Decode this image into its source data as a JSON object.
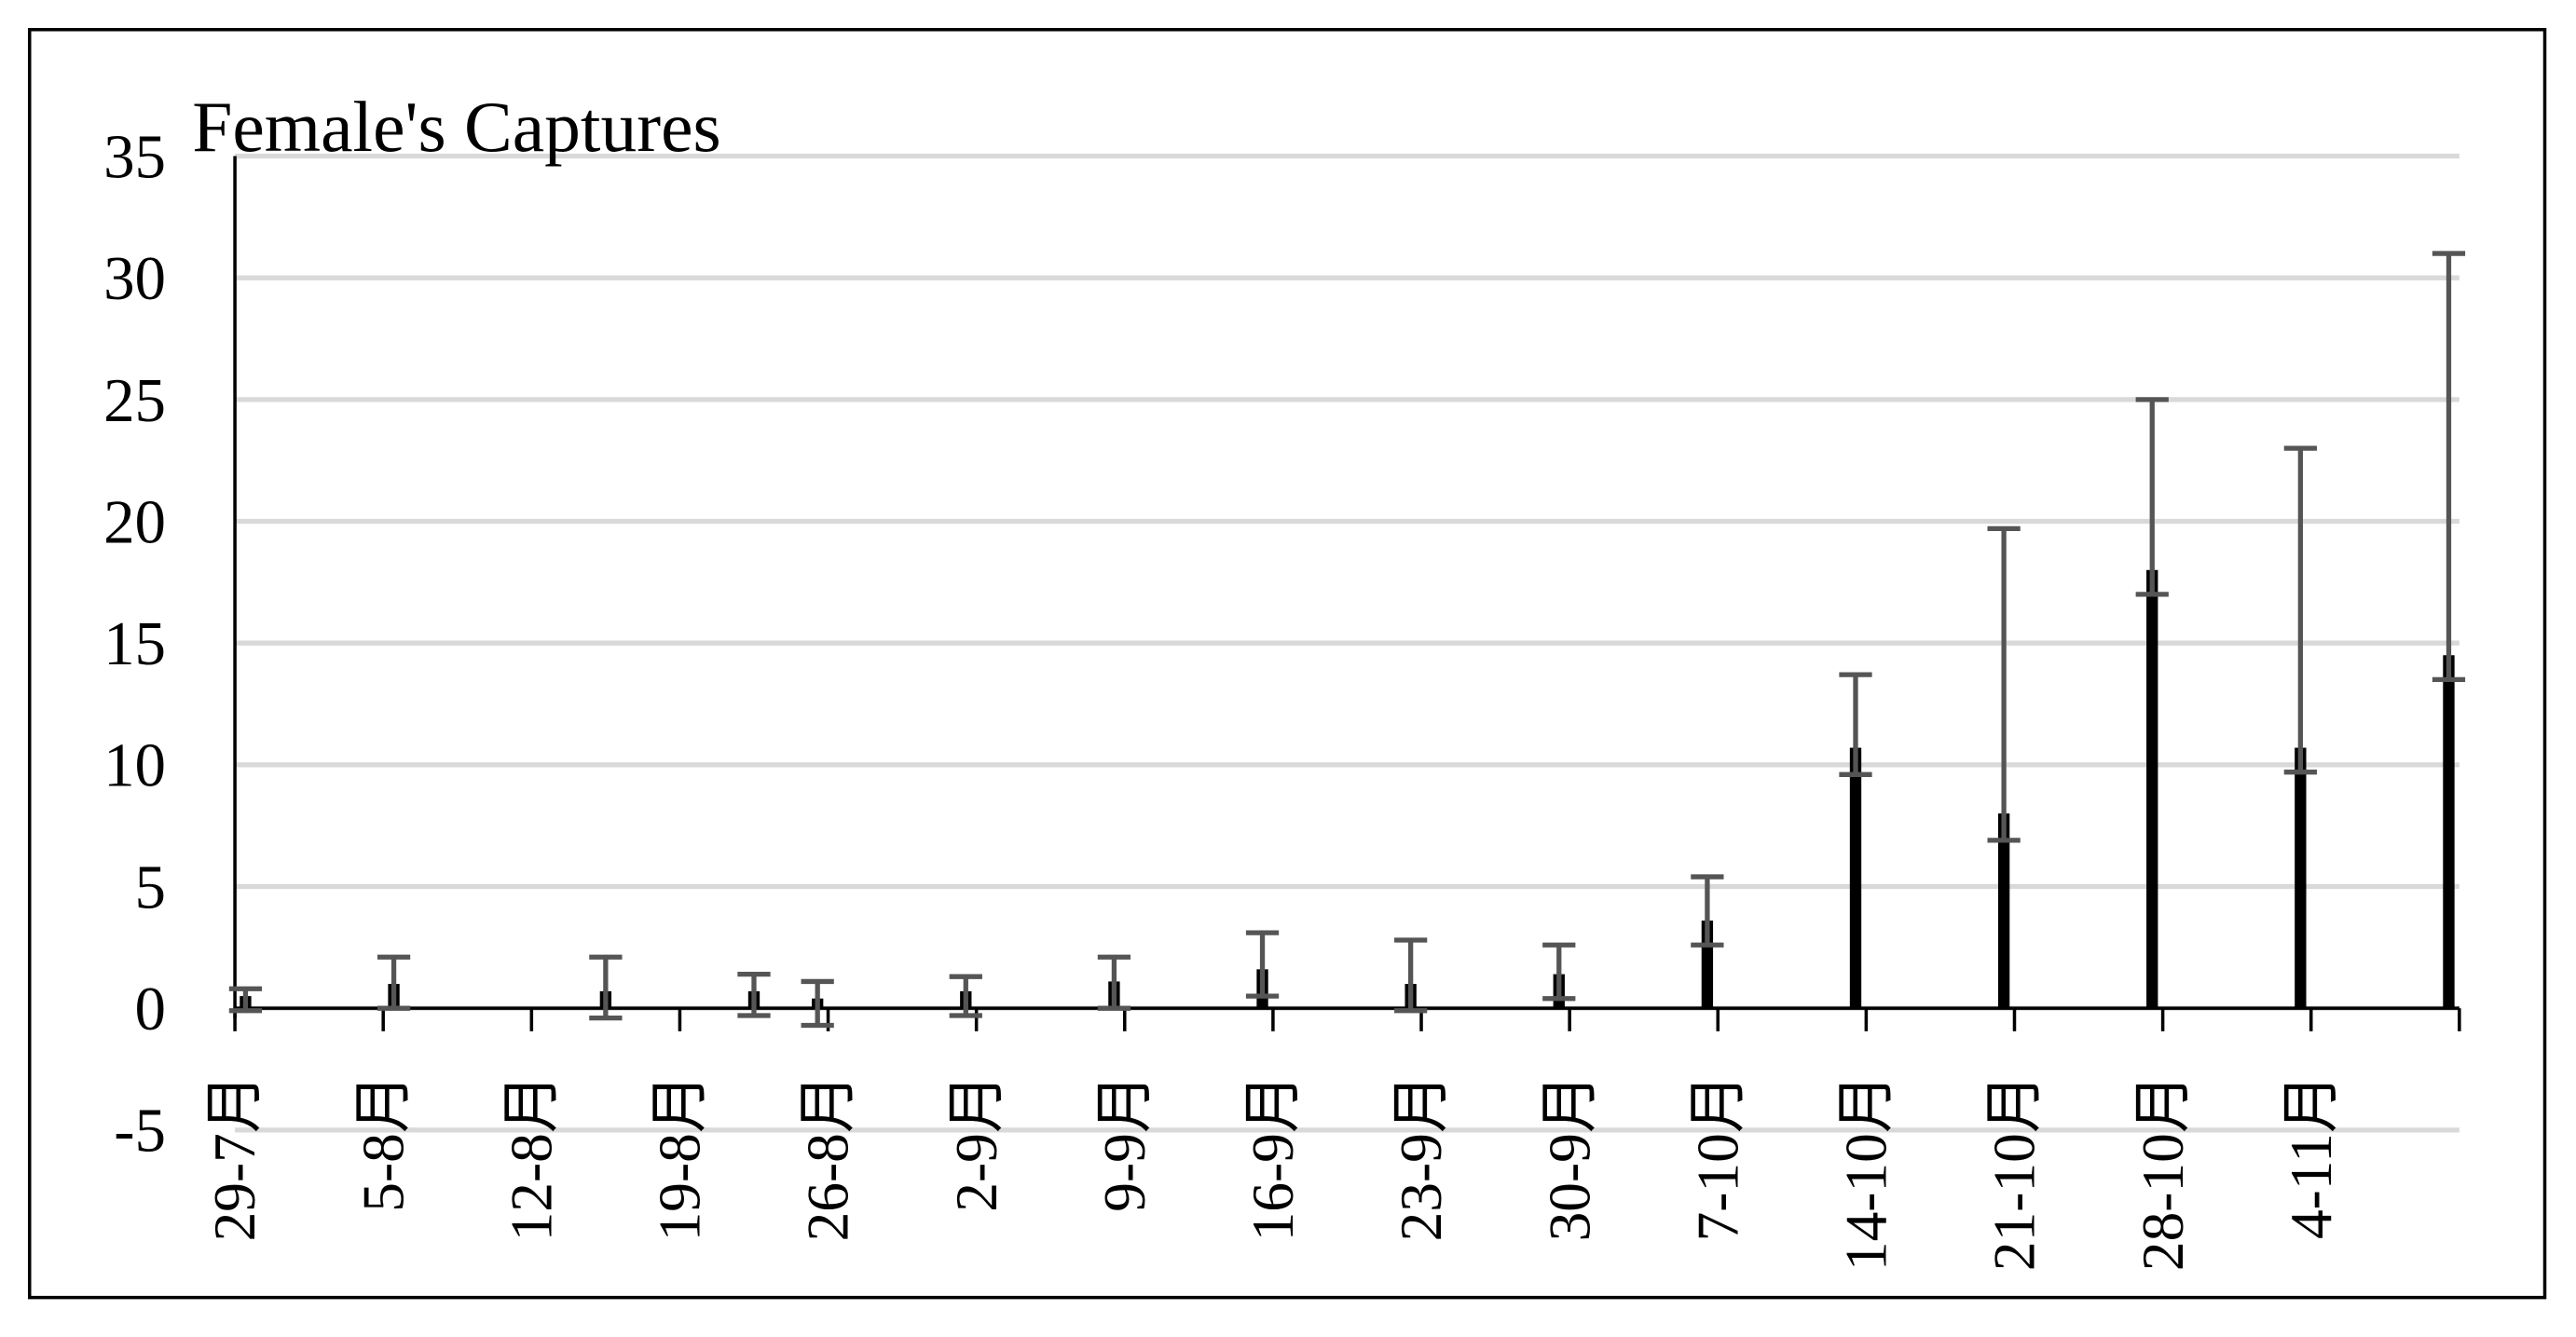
{
  "chart_data": {
    "type": "bar",
    "title": "Female's Captures",
    "x": [
      0,
      7,
      17,
      24,
      27,
      34,
      41,
      48,
      55,
      62,
      69,
      76,
      83,
      90,
      97,
      104
    ],
    "values": [
      0.5,
      1.0,
      0.7,
      0.7,
      0.4,
      0.7,
      1.1,
      1.6,
      1.0,
      1.4,
      3.6,
      10.7,
      8.0,
      18.0,
      10.7,
      14.5
    ],
    "error_minus": [
      0.6,
      1.0,
      1.1,
      1.0,
      1.1,
      1.0,
      1.1,
      1.1,
      1.1,
      1.0,
      1.0,
      1.1,
      1.1,
      1.0,
      1.0,
      1.0
    ],
    "error_plus": [
      0.3,
      1.1,
      1.4,
      0.7,
      0.7,
      0.6,
      1.0,
      1.5,
      1.8,
      1.2,
      1.8,
      3.0,
      11.7,
      7.0,
      12.3,
      16.5
    ],
    "color": "#000000",
    "error_color": "#555555",
    "xlim": [
      0,
      105
    ],
    "xticks": [
      {
        "value": 0,
        "label": "29-7月"
      },
      {
        "value": 7,
        "label": "5-8月"
      },
      {
        "value": 14,
        "label": "12-8月"
      },
      {
        "value": 21,
        "label": "19-8月"
      },
      {
        "value": 28,
        "label": "26-8月"
      },
      {
        "value": 35,
        "label": "2-9月"
      },
      {
        "value": 42,
        "label": "9-9月"
      },
      {
        "value": 49,
        "label": "16-9月"
      },
      {
        "value": 56,
        "label": "23-9月"
      },
      {
        "value": 63,
        "label": "30-9月"
      },
      {
        "value": 70,
        "label": "7-10月"
      },
      {
        "value": 77,
        "label": "14-10月"
      },
      {
        "value": 84,
        "label": "21-10月"
      },
      {
        "value": 91,
        "label": "28-10月"
      },
      {
        "value": 98,
        "label": "4-11月"
      },
      {
        "value": 105,
        "label": null
      }
    ],
    "ylim": [
      -5,
      35
    ],
    "yticks": [
      -5,
      0,
      5,
      10,
      15,
      20,
      25,
      30,
      35
    ],
    "grid": true
  }
}
